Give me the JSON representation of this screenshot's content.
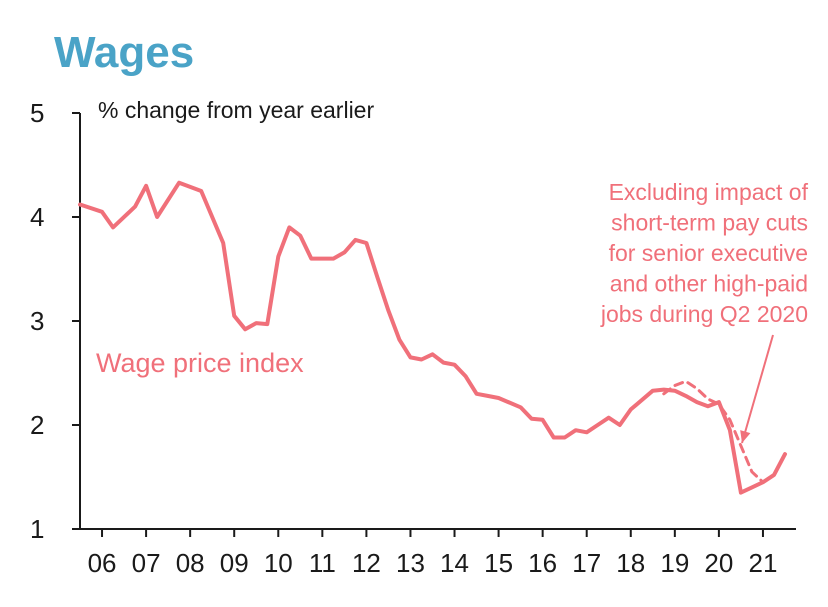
{
  "chart_data": {
    "type": "line",
    "title": "Wages",
    "ylabel": "% change from year earlier",
    "xlabel": "",
    "ylim": [
      1,
      5
    ],
    "xlim": [
      2005.5,
      2021.75
    ],
    "yticks": [
      1,
      2,
      3,
      4,
      5
    ],
    "x_tick_labels": [
      "06",
      "07",
      "08",
      "09",
      "10",
      "11",
      "12",
      "13",
      "14",
      "15",
      "16",
      "17",
      "18",
      "19",
      "20",
      "21"
    ],
    "colors": {
      "series": "#f0707a",
      "title": "#4aa3c7",
      "axis": "#1a1a1a"
    },
    "series": [
      {
        "name": "Wage price index",
        "style": "solid",
        "x": [
          2005.5,
          2006.0,
          2006.25,
          2006.75,
          2007.0,
          2007.25,
          2007.75,
          2008.25,
          2008.75,
          2009.0,
          2009.25,
          2009.5,
          2009.75,
          2010.0,
          2010.25,
          2010.5,
          2010.75,
          2011.25,
          2011.5,
          2011.75,
          2012.0,
          2012.25,
          2012.5,
          2012.75,
          2013.0,
          2013.25,
          2013.5,
          2013.75,
          2014.0,
          2014.25,
          2014.5,
          2014.75,
          2015.0,
          2015.5,
          2015.75,
          2016.0,
          2016.25,
          2016.5,
          2016.75,
          2017.0,
          2017.25,
          2017.5,
          2017.75,
          2018.0,
          2018.5,
          2018.75,
          2019.0,
          2019.25,
          2019.5,
          2019.75,
          2020.0,
          2020.25,
          2020.5,
          2020.75,
          2021.0,
          2021.25,
          2021.5
        ],
        "y": [
          4.12,
          4.05,
          3.9,
          4.1,
          4.3,
          4.0,
          4.33,
          4.25,
          3.75,
          3.05,
          2.92,
          2.98,
          2.97,
          3.62,
          3.9,
          3.82,
          3.6,
          3.6,
          3.66,
          3.78,
          3.75,
          3.42,
          3.1,
          2.82,
          2.65,
          2.63,
          2.68,
          2.6,
          2.58,
          2.47,
          2.3,
          2.28,
          2.26,
          2.17,
          2.06,
          2.05,
          1.88,
          1.88,
          1.95,
          1.93,
          2.0,
          2.07,
          2.0,
          2.15,
          2.33,
          2.34,
          2.33,
          2.28,
          2.22,
          2.18,
          2.22,
          1.95,
          1.35,
          1.4,
          1.45,
          1.52,
          1.72
        ]
      },
      {
        "name": "Excluding impact of short-term pay cuts for senior executive and other high-paid jobs during Q2 2020",
        "style": "dashed",
        "x": [
          2018.75,
          2019.0,
          2019.25,
          2019.5,
          2019.75,
          2020.0,
          2020.25,
          2020.5,
          2020.75,
          2021.0,
          2021.25,
          2021.5
        ],
        "y": [
          2.3,
          2.38,
          2.42,
          2.35,
          2.25,
          2.2,
          2.05,
          1.8,
          1.55,
          1.45,
          1.52,
          1.72
        ]
      }
    ],
    "annotations": {
      "series_label": "Wage price index",
      "note_lines": [
        "Excluding impact of",
        "short-term pay cuts",
        "for senior executive",
        "and other high-paid",
        "jobs during Q2 2020"
      ]
    },
    "grid": false,
    "legend": "none"
  }
}
